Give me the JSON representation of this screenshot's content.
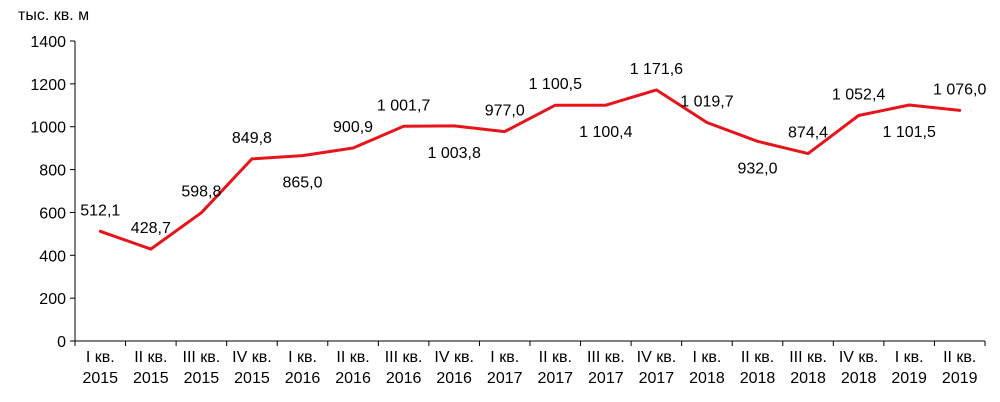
{
  "chart_data": {
    "type": "line",
    "unit_label": "тыс. кв. м",
    "ylim": [
      0,
      1400
    ],
    "y_ticks": [
      0,
      200,
      400,
      600,
      800,
      1000,
      1200,
      1400
    ],
    "y_tick_labels": [
      "0",
      "200",
      "400",
      "600",
      "800",
      "1000",
      "1200",
      "1400"
    ],
    "grid": false,
    "legend": "none",
    "categories": [
      [
        "I кв.",
        "2015"
      ],
      [
        "II кв.",
        "2015"
      ],
      [
        "III кв.",
        "2015"
      ],
      [
        "IV кв.",
        "2015"
      ],
      [
        "I кв.",
        "2016"
      ],
      [
        "II кв.",
        "2016"
      ],
      [
        "III кв.",
        "2016"
      ],
      [
        "IV кв.",
        "2016"
      ],
      [
        "I кв.",
        "2017"
      ],
      [
        "II кв.",
        "2017"
      ],
      [
        "III кв.",
        "2017"
      ],
      [
        "IV кв.",
        "2017"
      ],
      [
        "I кв.",
        "2018"
      ],
      [
        "II кв.",
        "2018"
      ],
      [
        "III кв.",
        "2018"
      ],
      [
        "IV кв.",
        "2018"
      ],
      [
        "I кв.",
        "2019"
      ],
      [
        "II кв.",
        "2019"
      ]
    ],
    "series": [
      {
        "color": "#e8141c",
        "values": [
          512.1,
          428.7,
          598.8,
          849.8,
          865.0,
          900.9,
          1001.7,
          1003.8,
          977.0,
          1100.5,
          1100.4,
          1171.6,
          1019.7,
          932.0,
          874.4,
          1052.4,
          1101.5,
          1076.0
        ],
        "data_labels": [
          "512,1",
          "428,7",
          "598,8",
          "849,8",
          "865,0",
          "900,9",
          "1 001,7",
          "1 003,8",
          "977,0",
          "1 100,5",
          "1 100,4",
          "1 171,6",
          "1 019,7",
          "932,0",
          "874,4",
          "1 052,4",
          "1 101,5",
          "1 076,0"
        ],
        "label_position": [
          "above",
          "above",
          "above",
          "above",
          "below",
          "above",
          "above",
          "below",
          "above",
          "above",
          "below",
          "above",
          "above",
          "below",
          "above",
          "above",
          "below",
          "above"
        ]
      }
    ]
  }
}
